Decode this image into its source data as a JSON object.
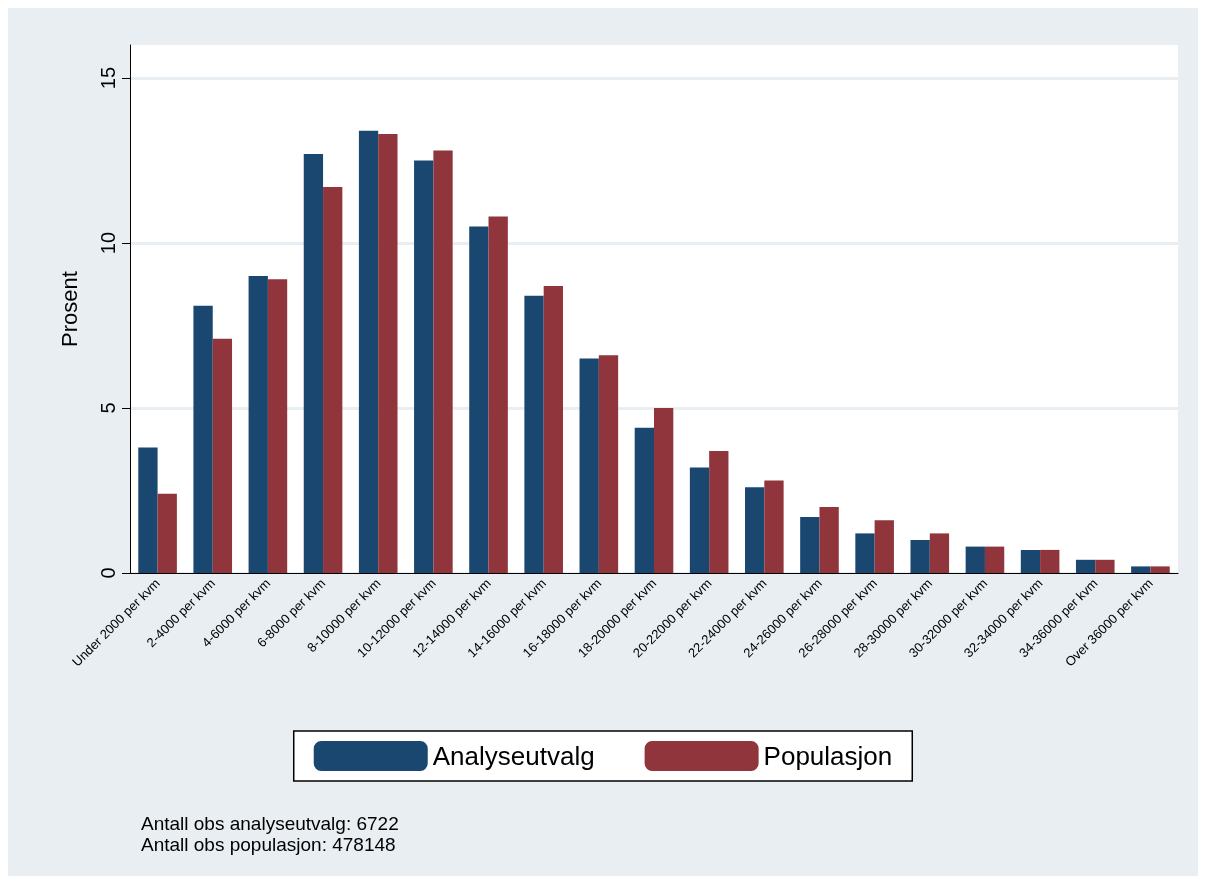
{
  "chart_data": {
    "type": "bar",
    "ylabel": "Prosent",
    "categories": [
      "Under 2000 per kvm",
      "2-4000 per kvm",
      "4-6000 per kvm",
      "6-8000 per kvm",
      "8-10000 per kvm",
      "10-12000 per kvm",
      "12-14000 per kvm",
      "14-16000 per kvm",
      "16-18000 per kvm",
      "18-20000 per kvm",
      "20-22000 per kvm",
      "22-24000 per kvm",
      "24-26000 per kvm",
      "26-28000 per kvm",
      "28-30000 per kvm",
      "30-32000 per kvm",
      "32-34000 per kvm",
      "34-36000 per kvm",
      "Over 36000 per kvm"
    ],
    "series": [
      {
        "name": "Analyseutvalg",
        "color": "#1a476f",
        "values": [
          3.8,
          8.1,
          9.0,
          12.7,
          13.4,
          12.5,
          10.5,
          8.4,
          6.5,
          4.4,
          3.2,
          2.6,
          1.7,
          1.2,
          1.0,
          0.8,
          0.7,
          0.4,
          0.2
        ]
      },
      {
        "name": "Populasjon",
        "color": "#90353b",
        "values": [
          2.4,
          7.1,
          8.9,
          11.7,
          13.3,
          12.8,
          10.8,
          8.7,
          6.6,
          5.0,
          3.7,
          2.8,
          2.0,
          1.6,
          1.2,
          0.8,
          0.7,
          0.4,
          0.2
        ]
      }
    ],
    "ylim": [
      0,
      16
    ],
    "yticks": [
      0,
      5,
      10,
      15
    ],
    "grid": "y",
    "legend": "bottom",
    "annotations": [
      "Antall obs analyseutvalg: 6722",
      "Antall obs populasjon: 478148"
    ]
  }
}
